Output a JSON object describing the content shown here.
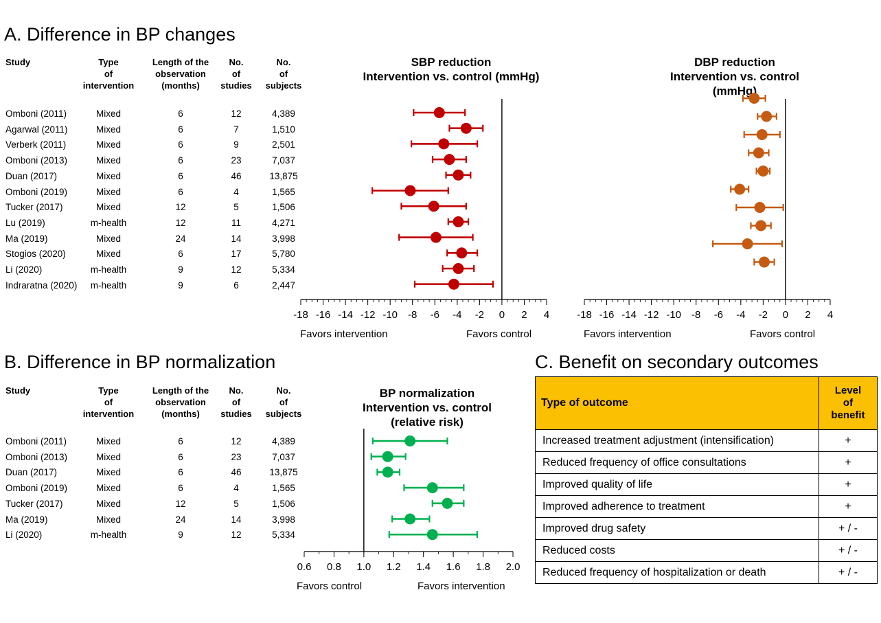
{
  "section_a": {
    "title": "A. Difference in BP changes",
    "headers": {
      "study": "Study",
      "type": "Type\nof\nintervention",
      "length": "Length of the\nobservation\n(months)",
      "studies": "No.\nof\nstudies",
      "subjects": "No.\nof\nsubjects"
    },
    "rows": [
      {
        "study": "Omboni (2011)",
        "type": "Mixed",
        "length": "6",
        "studies": "12",
        "subjects": "4,389"
      },
      {
        "study": "Agarwal (2011)",
        "type": "Mixed",
        "length": "6",
        "studies": "7",
        "subjects": "1,510"
      },
      {
        "study": "Verberk (2011)",
        "type": "Mixed",
        "length": "6",
        "studies": "9",
        "subjects": "2,501"
      },
      {
        "study": "Omboni (2013)",
        "type": "Mixed",
        "length": "6",
        "studies": "23",
        "subjects": "7,037"
      },
      {
        "study": "Duan (2017)",
        "type": "Mixed",
        "length": "6",
        "studies": "46",
        "subjects": "13,875"
      },
      {
        "study": "Omboni (2019)",
        "type": "Mixed",
        "length": "6",
        "studies": "4",
        "subjects": "1,565"
      },
      {
        "study": "Tucker (2017)",
        "type": "Mixed",
        "length": "12",
        "studies": "5",
        "subjects": "1,506"
      },
      {
        "study": "Lu (2019)",
        "type": "m-health",
        "length": "12",
        "studies": "11",
        "subjects": "4,271"
      },
      {
        "study": "Ma (2019)",
        "type": "Mixed",
        "length": "24",
        "studies": "14",
        "subjects": "3,998"
      },
      {
        "study": "Stogios (2020)",
        "type": "Mixed",
        "length": "6",
        "studies": "17",
        "subjects": "5,780"
      },
      {
        "study": "Li (2020)",
        "type": "m-health",
        "length": "9",
        "studies": "12",
        "subjects": "5,334"
      },
      {
        "study": "Indraratna (2020)",
        "type": "m-health",
        "length": "9",
        "studies": "6",
        "subjects": "2,447"
      }
    ]
  },
  "section_b": {
    "title": "B. Difference in BP normalization",
    "headers": {
      "study": "Study",
      "type": "Type\nof\nintervention",
      "length": "Length of the\nobservation\n(months)",
      "studies": "No.\nof\nstudies",
      "subjects": "No.\nof\nsubjects"
    },
    "rows": [
      {
        "study": "Omboni (2011)",
        "type": "Mixed",
        "length": "6",
        "studies": "12",
        "subjects": "4,389"
      },
      {
        "study": "Omboni (2013)",
        "type": "Mixed",
        "length": "6",
        "studies": "23",
        "subjects": "7,037"
      },
      {
        "study": "Duan (2017)",
        "type": "Mixed",
        "length": "6",
        "studies": "46",
        "subjects": "13,875"
      },
      {
        "study": "Omboni (2019)",
        "type": "Mixed",
        "length": "6",
        "studies": "4",
        "subjects": "1,565"
      },
      {
        "study": "Tucker (2017)",
        "type": "Mixed",
        "length": "12",
        "studies": "5",
        "subjects": "1,506"
      },
      {
        "study": "Ma (2019)",
        "type": "Mixed",
        "length": "24",
        "studies": "14",
        "subjects": "3,998"
      },
      {
        "study": "Li (2020)",
        "type": "m-health",
        "length": "9",
        "studies": "12",
        "subjects": "5,334"
      }
    ]
  },
  "section_c": {
    "title": "C. Benefit on secondary outcomes",
    "header_outcome": "Type of outcome",
    "header_level": "Level\nof\nbenefit",
    "header_color": "#FBC002",
    "rows": [
      {
        "outcome": "Increased treatment adjustment (intensification)",
        "level": "+"
      },
      {
        "outcome": "Reduced frequency of office consultations",
        "level": "+"
      },
      {
        "outcome": "Improved quality of life",
        "level": "+"
      },
      {
        "outcome": "Improved adherence to treatment",
        "level": "+"
      },
      {
        "outcome": "Improved drug safety",
        "level": "+ / -"
      },
      {
        "outcome": "Reduced costs",
        "level": "+ / -"
      },
      {
        "outcome": "Reduced frequency of hospitalization or death",
        "level": "+ / -"
      }
    ]
  },
  "chart_data": [
    {
      "type": "forest",
      "title": "SBP reduction\nIntervention vs. control (mmHg)",
      "color": "#C00000",
      "xlim": [
        -18,
        4
      ],
      "ticks": [
        "-18",
        "-16",
        "-14",
        "-12",
        "-10",
        "-8",
        "-6",
        "-4",
        "-2",
        "0",
        "2",
        "4"
      ],
      "reference": 0,
      "favors_left": "Favors intervention",
      "favors_right": "Favors control",
      "points": [
        {
          "estimate": -5.6,
          "lower": -7.9,
          "upper": -3.3
        },
        {
          "estimate": -3.2,
          "lower": -4.7,
          "upper": -1.7
        },
        {
          "estimate": -5.2,
          "lower": -8.1,
          "upper": -2.2
        },
        {
          "estimate": -4.7,
          "lower": -6.2,
          "upper": -3.2
        },
        {
          "estimate": -3.9,
          "lower": -5.0,
          "upper": -2.8
        },
        {
          "estimate": -8.2,
          "lower": -11.6,
          "upper": -4.8
        },
        {
          "estimate": -6.1,
          "lower": -9.0,
          "upper": -3.2
        },
        {
          "estimate": -3.9,
          "lower": -4.8,
          "upper": -3.0
        },
        {
          "estimate": -5.9,
          "lower": -9.2,
          "upper": -2.6
        },
        {
          "estimate": -3.6,
          "lower": -4.9,
          "upper": -2.2
        },
        {
          "estimate": -3.9,
          "lower": -5.3,
          "upper": -2.5
        },
        {
          "estimate": -4.3,
          "lower": -7.8,
          "upper": -0.8
        }
      ]
    },
    {
      "type": "forest",
      "title": "DBP reduction\nIntervention vs. control (mmHg)",
      "color": "#C55A11",
      "xlim": [
        -18,
        4
      ],
      "ticks": [
        "-18",
        "-16",
        "-14",
        "-12",
        "-10",
        "-8",
        "-6",
        "-4",
        "-2",
        "0",
        "2",
        "4"
      ],
      "reference": 0,
      "favors_left": "Favors intervention",
      "favors_right": "Favors control",
      "points": [
        {
          "estimate": -2.8,
          "lower": -3.8,
          "upper": -1.8
        },
        {
          "estimate": -1.7,
          "lower": -2.5,
          "upper": -0.8
        },
        {
          "estimate": -2.1,
          "lower": -3.7,
          "upper": -0.5
        },
        {
          "estimate": -2.4,
          "lower": -3.3,
          "upper": -1.5
        },
        {
          "estimate": -2.0,
          "lower": -2.6,
          "upper": -1.4
        },
        {
          "estimate": -4.1,
          "lower": -4.9,
          "upper": -3.3
        },
        {
          "estimate": -2.3,
          "lower": -4.4,
          "upper": -0.2
        },
        {
          "estimate": -2.2,
          "lower": -3.1,
          "upper": -1.3
        },
        {
          "estimate": -3.4,
          "lower": -6.5,
          "upper": -0.3
        },
        {
          "estimate": -1.9,
          "lower": -2.8,
          "upper": -1.0
        }
      ]
    },
    {
      "type": "forest",
      "title": "BP normalization\nIntervention vs. control\n(relative risk)",
      "color": "#00B050",
      "xlim": [
        0.6,
        2.0
      ],
      "ticks": [
        "0.6",
        "0.8",
        "1.0",
        "1.2",
        "1.4",
        "1.6",
        "1.8",
        "2.0"
      ],
      "reference": 1.0,
      "favors_left": "Favors control",
      "favors_right": "Favors intervention",
      "points": [
        {
          "estimate": 1.31,
          "lower": 1.06,
          "upper": 1.56
        },
        {
          "estimate": 1.16,
          "lower": 1.05,
          "upper": 1.28
        },
        {
          "estimate": 1.16,
          "lower": 1.09,
          "upper": 1.24
        },
        {
          "estimate": 1.46,
          "lower": 1.27,
          "upper": 1.67
        },
        {
          "estimate": 1.56,
          "lower": 1.46,
          "upper": 1.67
        },
        {
          "estimate": 1.31,
          "lower": 1.19,
          "upper": 1.44
        },
        {
          "estimate": 1.46,
          "lower": 1.17,
          "upper": 1.76
        }
      ]
    }
  ]
}
